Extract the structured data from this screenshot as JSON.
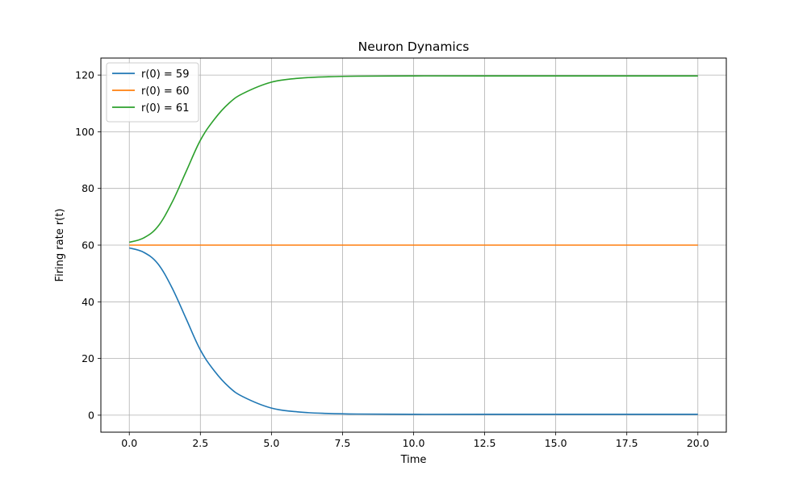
{
  "chart_data": {
    "type": "line",
    "title": "Neuron Dynamics",
    "xlabel": "Time",
    "ylabel": "Firing rate r(t)",
    "xlim": [
      -1.0,
      21.0
    ],
    "ylim": [
      -6.0,
      126.0
    ],
    "x_ticks": [
      0.0,
      2.5,
      5.0,
      7.5,
      10.0,
      12.5,
      15.0,
      17.5,
      20.0
    ],
    "x_tick_labels": [
      "0.0",
      "2.5",
      "5.0",
      "7.5",
      "10.0",
      "12.5",
      "15.0",
      "17.5",
      "20.0"
    ],
    "y_ticks": [
      0,
      20,
      40,
      60,
      80,
      100,
      120
    ],
    "y_tick_labels": [
      "0",
      "20",
      "40",
      "60",
      "80",
      "100",
      "120"
    ],
    "grid": true,
    "legend": {
      "position": "top-left"
    },
    "x": [
      0,
      0.5,
      1,
      1.5,
      2,
      2.5,
      3,
      3.5,
      4,
      5,
      6,
      7,
      8,
      10,
      12.5,
      15,
      17.5,
      20
    ],
    "series": [
      {
        "name": "r(0) = 59",
        "color": "#1f77b4",
        "values": [
          59,
          57.5,
          53.5,
          45,
          34,
          23,
          15.5,
          10,
          6.5,
          2.5,
          1.1,
          0.6,
          0.4,
          0.3,
          0.3,
          0.3,
          0.3,
          0.3
        ]
      },
      {
        "name": "r(0) = 60",
        "color": "#ff7f0e",
        "values": [
          60,
          60,
          60,
          60,
          60,
          60,
          60,
          60,
          60,
          60,
          60,
          60,
          60,
          60,
          60,
          60,
          60,
          60
        ]
      },
      {
        "name": "r(0) = 61",
        "color": "#2ca02c",
        "values": [
          61,
          62.5,
          66.5,
          75,
          86,
          97,
          104.5,
          110,
          113.5,
          117.5,
          118.9,
          119.4,
          119.6,
          119.7,
          119.7,
          119.7,
          119.7,
          119.7
        ]
      }
    ]
  }
}
